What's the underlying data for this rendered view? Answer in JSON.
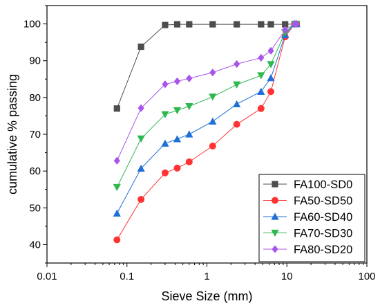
{
  "chart_data": {
    "type": "line",
    "xlabel": "Sieve Size (mm)",
    "ylabel": "cumulative % passing",
    "xscale": "log",
    "xlim": [
      0.01,
      100
    ],
    "ylim": [
      35,
      105
    ],
    "xticks": [
      "0.01",
      "0.1",
      "1",
      "10",
      "100"
    ],
    "yticks": [
      "40",
      "50",
      "60",
      "70",
      "80",
      "90",
      "100"
    ],
    "grid": false,
    "legend_position": "bottom-right",
    "x": [
      0.075,
      0.15,
      0.3,
      0.425,
      0.6,
      1.18,
      2.36,
      4.75,
      6.3,
      9.5,
      12.5,
      13.2
    ],
    "series": [
      {
        "name": "FA100-SD0",
        "color": "#4d4d4d",
        "marker": "square",
        "values": [
          77,
          93.8,
          99.7,
          99.9,
          99.9,
          99.9,
          99.9,
          99.9,
          99.9,
          99.9,
          100,
          100
        ]
      },
      {
        "name": "FA50-SD50",
        "color": "#ff3333",
        "marker": "circle",
        "values": [
          41.3,
          52.3,
          59.5,
          60.8,
          62.5,
          66.8,
          72.7,
          77,
          81.6,
          96.5,
          100,
          100
        ]
      },
      {
        "name": "FA60-SD40",
        "color": "#1f6fd6",
        "marker": "triangle-up",
        "values": [
          48.5,
          60.7,
          67.5,
          68.7,
          70,
          73.5,
          78.2,
          81.6,
          85.3,
          97,
          100,
          100
        ]
      },
      {
        "name": "FA70-SD30",
        "color": "#2fb84f",
        "marker": "triangle-down",
        "values": [
          55.6,
          68.8,
          75.4,
          76.5,
          77.6,
          80.2,
          83.5,
          86,
          89,
          97.7,
          100,
          100
        ]
      },
      {
        "name": "FA80-SD20",
        "color": "#a855ea",
        "marker": "diamond",
        "values": [
          62.8,
          77.1,
          83.6,
          84.4,
          85.2,
          86.8,
          89.1,
          90.8,
          92.7,
          98.4,
          100,
          100
        ]
      }
    ]
  }
}
